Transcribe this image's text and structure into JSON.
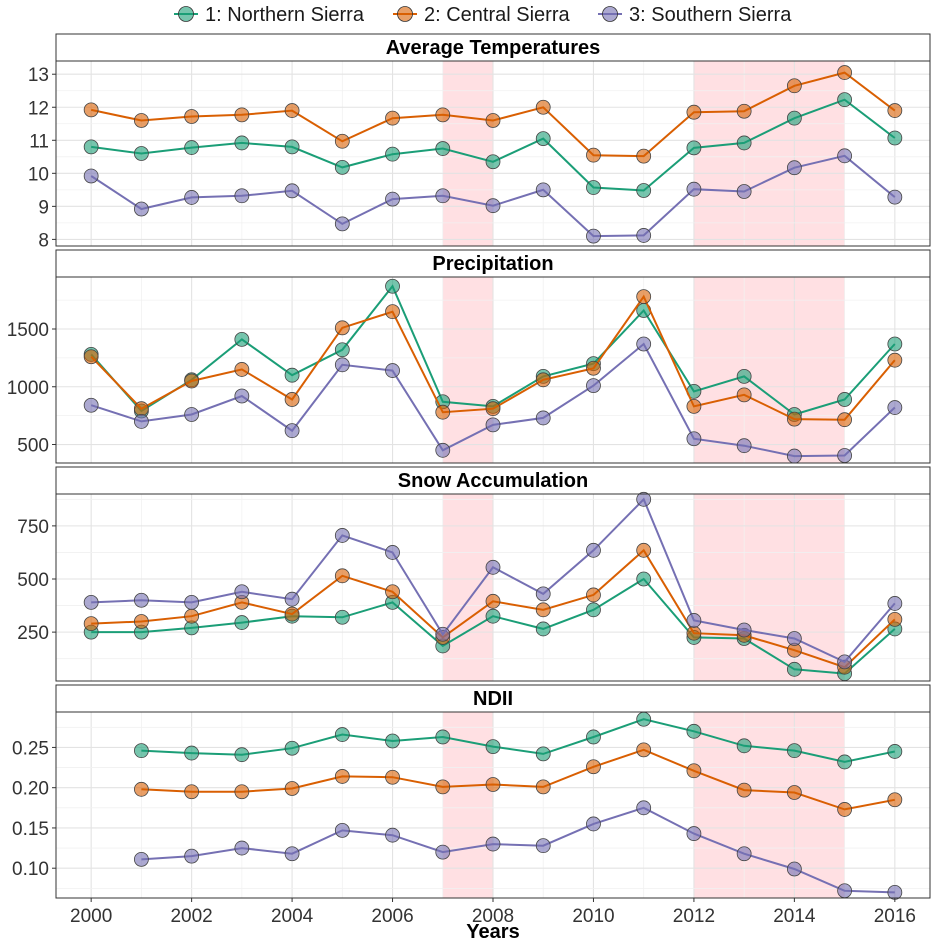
{
  "chart_data": {
    "type": "line",
    "xlabel": "Years",
    "x": [
      2000,
      2001,
      2002,
      2003,
      2004,
      2005,
      2006,
      2007,
      2008,
      2009,
      2010,
      2011,
      2012,
      2013,
      2014,
      2015,
      2016
    ],
    "xlim": [
      1999.3,
      2016.7
    ],
    "x_ticks": [
      "2000",
      "2002",
      "2004",
      "2006",
      "2008",
      "2010",
      "2012",
      "2014",
      "2016"
    ],
    "shaded_periods": [
      [
        2007,
        2008
      ],
      [
        2012,
        2015
      ]
    ],
    "shade_color": "#ffe0e3",
    "legend": {
      "position": "top",
      "entries": [
        {
          "label": "1: Northern Sierra",
          "color": "#1b9e77"
        },
        {
          "label": "2: Central Sierra",
          "color": "#d95f02"
        },
        {
          "label": "3: Southern Sierra",
          "color": "#7570b3"
        }
      ]
    },
    "panels": [
      {
        "title": "Average Temperatures",
        "ylim": [
          7.8,
          13.4
        ],
        "y_ticks": [
          "8",
          "9",
          "10",
          "11",
          "12",
          "13"
        ],
        "series": [
          {
            "name": "1: Northern Sierra",
            "color": "#1b9e77",
            "values": [
              10.8,
              10.6,
              10.78,
              10.92,
              10.8,
              10.18,
              10.58,
              10.75,
              10.35,
              11.05,
              9.57,
              9.48,
              10.77,
              10.92,
              11.67,
              12.23,
              11.07
            ]
          },
          {
            "name": "2: Central Sierra",
            "color": "#d95f02",
            "values": [
              11.92,
              11.6,
              11.72,
              11.77,
              11.9,
              10.97,
              11.67,
              11.77,
              11.6,
              12.0,
              10.55,
              10.52,
              11.85,
              11.88,
              12.65,
              13.05,
              11.9
            ]
          },
          {
            "name": "3: Southern Sierra",
            "color": "#7570b3",
            "values": [
              9.92,
              8.92,
              9.27,
              9.32,
              9.47,
              8.47,
              9.22,
              9.32,
              9.02,
              9.5,
              8.1,
              8.12,
              9.52,
              9.45,
              10.17,
              10.53,
              9.28
            ]
          }
        ]
      },
      {
        "title": "Precipitation",
        "ylim": [
          340,
          1950
        ],
        "y_ticks": [
          "500",
          "1000",
          "1500"
        ],
        "series": [
          {
            "name": "1: Northern Sierra",
            "color": "#1b9e77",
            "values": [
              1280,
              790,
              1060,
              1410,
              1100,
              1320,
              1870,
              870,
              830,
              1090,
              1200,
              1660,
              960,
              1090,
              760,
              890,
              1370
            ]
          },
          {
            "name": "2: Central Sierra",
            "color": "#d95f02",
            "values": [
              1260,
              810,
              1050,
              1150,
              890,
              1510,
              1650,
              780,
              810,
              1060,
              1160,
              1780,
              830,
              930,
              720,
              715,
              1230
            ]
          },
          {
            "name": "3: Southern Sierra",
            "color": "#7570b3",
            "values": [
              840,
              700,
              760,
              920,
              620,
              1190,
              1140,
              450,
              670,
              730,
              1010,
              1370,
              550,
              490,
              400,
              405,
              820
            ]
          }
        ]
      },
      {
        "title": "Snow Accumulation",
        "ylim": [
          20,
          900
        ],
        "y_ticks": [
          "250",
          "500",
          "750"
        ],
        "series": [
          {
            "name": "1: Northern Sierra",
            "color": "#1b9e77",
            "values": [
              250,
              250,
              270,
              295,
              325,
              320,
              390,
              185,
              325,
              265,
              355,
              500,
              225,
              220,
              75,
              55,
              265
            ]
          },
          {
            "name": "2: Central Sierra",
            "color": "#d95f02",
            "values": [
              290,
              300,
              325,
              390,
              335,
              515,
              440,
              225,
              395,
              355,
              425,
              635,
              245,
              235,
              165,
              85,
              310
            ]
          },
          {
            "name": "3: Southern Sierra",
            "color": "#7570b3",
            "values": [
              390,
              400,
              390,
              440,
              405,
              705,
              625,
              240,
              555,
              430,
              635,
              875,
              305,
              260,
              220,
              110,
              385
            ]
          }
        ]
      },
      {
        "title": "NDII",
        "ylim": [
          0.063,
          0.294
        ],
        "y_ticks": [
          "0.10",
          "0.15",
          "0.20",
          "0.25"
        ],
        "series": [
          {
            "name": "1: Northern Sierra",
            "color": "#1b9e77",
            "values": [
              null,
              0.246,
              0.243,
              0.241,
              0.249,
              0.266,
              0.258,
              0.263,
              0.251,
              0.242,
              0.263,
              0.285,
              0.27,
              0.252,
              0.246,
              0.232,
              0.245
            ]
          },
          {
            "name": "2: Central Sierra",
            "color": "#d95f02",
            "values": [
              null,
              0.198,
              0.195,
              0.195,
              0.199,
              0.214,
              0.213,
              0.201,
              0.204,
              0.201,
              0.226,
              0.247,
              0.221,
              0.197,
              0.194,
              0.173,
              0.185
            ]
          },
          {
            "name": "3: Southern Sierra",
            "color": "#7570b3",
            "values": [
              null,
              0.111,
              0.115,
              0.125,
              0.118,
              0.147,
              0.141,
              0.12,
              0.13,
              0.128,
              0.155,
              0.175,
              0.143,
              0.118,
              0.099,
              0.072,
              0.07
            ]
          }
        ]
      }
    ]
  }
}
